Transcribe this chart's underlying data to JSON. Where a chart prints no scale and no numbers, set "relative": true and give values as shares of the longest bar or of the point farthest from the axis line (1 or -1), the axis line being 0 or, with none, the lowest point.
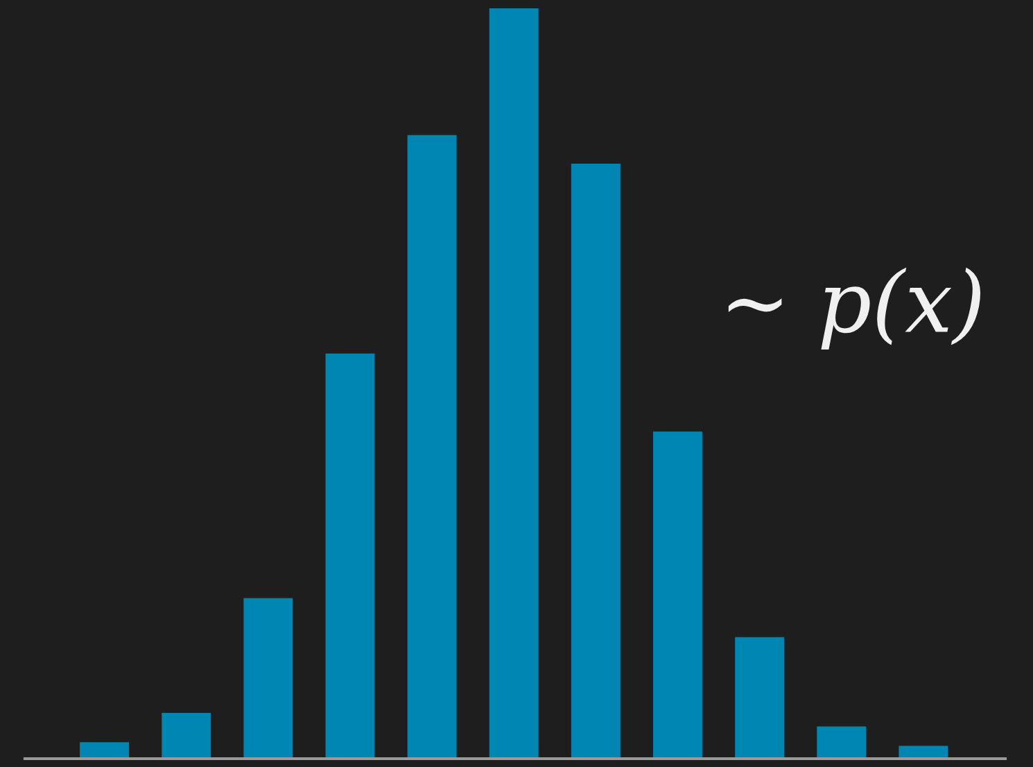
{
  "chart_data": {
    "type": "bar",
    "relative": true,
    "categories": [
      null,
      null,
      null,
      null,
      null,
      null,
      null,
      null,
      null,
      null,
      null
    ],
    "values": [
      0.022,
      0.061,
      0.214,
      0.54,
      0.831,
      1,
      0.793,
      0.436,
      0.162,
      0.043,
      0.017
    ],
    "color": "#0086b3",
    "annotations": [
      "∼ p(x)"
    ],
    "grid": false,
    "legend": false
  }
}
